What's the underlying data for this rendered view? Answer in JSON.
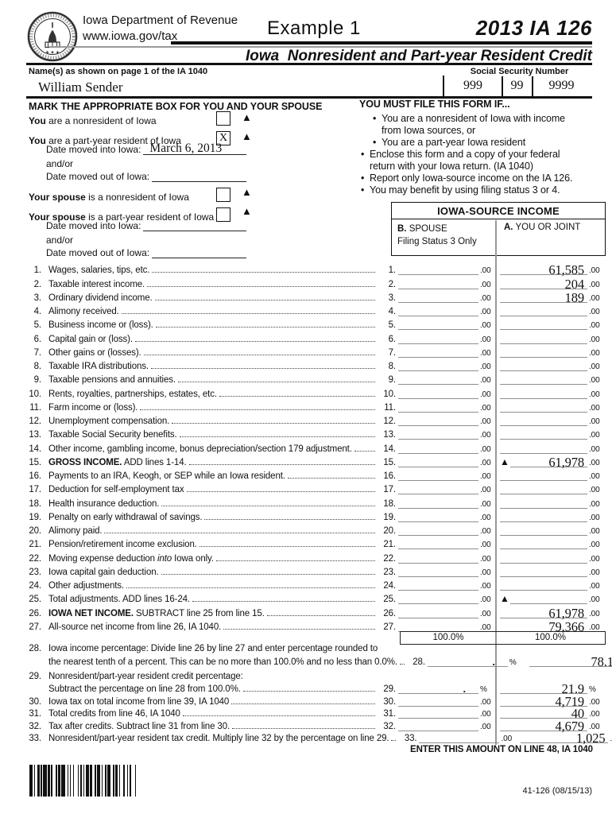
{
  "colors": {
    "text": "#111111",
    "fill_line": "#8f8f8f",
    "divider": "#999999"
  },
  "header": {
    "dept": "Iowa Department of Revenue",
    "url": "www.iowa.gov/tax",
    "example": "Example 1",
    "form_id": "2013 IA 126",
    "subtitle": "Iowa  Nonresident and Part-year Resident Credit",
    "seal": "iowa-department-of-revenue-seal"
  },
  "identity": {
    "name_label": "Name(s) as shown on page 1 of the IA 1040",
    "ssn_label": "Social Security Number",
    "name_value": "William Sender",
    "ssn_parts": {
      "0": "999",
      "1": "99",
      "2": "9999"
    }
  },
  "residency": {
    "title": "MARK THE APPROPRIATE BOX FOR YOU AND YOUR SPOUSE",
    "items": {
      "0": {
        "bold": "You",
        "rest": " are a nonresident of Iowa",
        "mark": ""
      },
      "1": {
        "bold": "You",
        "rest": " are a part-year resident of Iowa",
        "mark": "X"
      },
      "2": {
        "bold": "Your spouse",
        "rest": " is a nonresident of Iowa",
        "mark": ""
      },
      "3": {
        "bold": "Your spouse",
        "rest": " is a part-year resident of Iowa",
        "mark": ""
      }
    },
    "date_in_label": "Date moved into Iowa:",
    "andor": "and/or",
    "date_out_label": "Date moved out of Iowa:",
    "you_date_in": "March 6, 2013",
    "you_date_out": "",
    "spouse_date_in": "",
    "spouse_date_out": ""
  },
  "must_file": {
    "title": "YOU MUST FILE THIS FORM IF...",
    "bullets": {
      "0": {
        "lvl": 2,
        "text": "You are a nonresident of Iowa with income\nfrom Iowa sources, or"
      },
      "1": {
        "lvl": 2,
        "text": "You are a part-year Iowa resident"
      },
      "2": {
        "lvl": 1,
        "text": "Enclose this form and a copy of your federal\nreturn with your Iowa return. (IA 1040)"
      },
      "3": {
        "lvl": 1,
        "text": "Report only Iowa-source income on the IA 126."
      },
      "4": {
        "lvl": 1,
        "text": "You may benefit by using filing status 3 or 4."
      }
    }
  },
  "income_box": {
    "title": "IOWA-SOURCE INCOME",
    "col_b_letter": "B.",
    "col_b_text": " SPOUSE",
    "col_b_sub": "Filing Status 3 Only",
    "col_a_letter": "A.",
    "col_a_text": " YOU OR JOINT"
  },
  "lines": [
    {
      "n": "1.",
      "segs": [
        {
          "t": "Wages, salaries, tips, etc. "
        }
      ],
      "b": "",
      "a": "61,585",
      "unit": ".00"
    },
    {
      "n": "2.",
      "segs": [
        {
          "t": "Taxable interest income. "
        }
      ],
      "b": "",
      "a": "204",
      "unit": ".00"
    },
    {
      "n": "3.",
      "segs": [
        {
          "t": "Ordinary dividend income. "
        }
      ],
      "b": "",
      "a": "189",
      "unit": ".00"
    },
    {
      "n": "4.",
      "segs": [
        {
          "t": "Alimony received. "
        }
      ],
      "b": "",
      "a": "",
      "unit": ".00"
    },
    {
      "n": "5.",
      "segs": [
        {
          "t": "Business income or (loss). "
        }
      ],
      "b": "",
      "a": "",
      "unit": ".00"
    },
    {
      "n": "6.",
      "segs": [
        {
          "t": "Capital gain or (loss). "
        }
      ],
      "b": "",
      "a": "",
      "unit": ".00"
    },
    {
      "n": "7.",
      "segs": [
        {
          "t": "Other gains or (losses). "
        }
      ],
      "b": "",
      "a": "",
      "unit": ".00"
    },
    {
      "n": "8.",
      "segs": [
        {
          "t": "Taxable IRA distributions. "
        }
      ],
      "b": "",
      "a": "",
      "unit": ".00"
    },
    {
      "n": "9.",
      "segs": [
        {
          "t": "Taxable pensions and annuities. "
        }
      ],
      "b": "",
      "a": "",
      "unit": ".00"
    },
    {
      "n": "10.",
      "segs": [
        {
          "t": "Rents, royalties, partnerships, estates, etc. "
        }
      ],
      "b": "",
      "a": "",
      "unit": ".00"
    },
    {
      "n": "11.",
      "segs": [
        {
          "t": "Farm income or (loss). "
        }
      ],
      "b": "",
      "a": "",
      "unit": ".00"
    },
    {
      "n": "12.",
      "segs": [
        {
          "t": "Unemployment compensation. "
        }
      ],
      "b": "",
      "a": "",
      "unit": ".00"
    },
    {
      "n": "13.",
      "segs": [
        {
          "t": "Taxable Social Security benefits. "
        }
      ],
      "b": "",
      "a": "",
      "unit": ".00"
    },
    {
      "n": "14.",
      "segs": [
        {
          "t": "Other income, gambling income, bonus depreciation/section 179 adjustment. "
        }
      ],
      "b": "",
      "a": "",
      "unit": ".00"
    },
    {
      "n": "15.",
      "segs": [
        {
          "t": "GROSS INCOME.",
          "bold": true
        },
        {
          "t": " ADD lines 1-14. "
        }
      ],
      "b": "",
      "a": "61,978",
      "unit": ".00",
      "tri": true
    },
    {
      "n": "16.",
      "segs": [
        {
          "t": "Payments to an IRA, Keogh, or SEP while an Iowa resident. "
        }
      ],
      "b": "",
      "a": "",
      "unit": ".00"
    },
    {
      "n": "17.",
      "segs": [
        {
          "t": "Deduction for self-employment tax "
        }
      ],
      "b": "",
      "a": "",
      "unit": ".00"
    },
    {
      "n": "18.",
      "segs": [
        {
          "t": "Health insurance deduction. "
        }
      ],
      "b": "",
      "a": "",
      "unit": ".00"
    },
    {
      "n": "19.",
      "segs": [
        {
          "t": "Penalty on early withdrawal of savings. "
        }
      ],
      "b": "",
      "a": "",
      "unit": ".00"
    },
    {
      "n": "20.",
      "segs": [
        {
          "t": "Alimony paid. "
        }
      ],
      "b": "",
      "a": "",
      "unit": ".00"
    },
    {
      "n": "21.",
      "segs": [
        {
          "t": "Pension/retirement income exclusion. "
        }
      ],
      "b": "",
      "a": "",
      "unit": ".00"
    },
    {
      "n": "22.",
      "segs": [
        {
          "t": "Moving expense deduction "
        },
        {
          "t": "into",
          "ital": true
        },
        {
          "t": " Iowa only. "
        }
      ],
      "b": "",
      "a": "",
      "unit": ".00"
    },
    {
      "n": "23.",
      "segs": [
        {
          "t": "Iowa capital gain deduction. "
        }
      ],
      "b": "",
      "a": "",
      "unit": ".00"
    },
    {
      "n": "24.",
      "segs": [
        {
          "t": "Other adjustments. "
        }
      ],
      "b": "",
      "a": "",
      "unit": ".00"
    },
    {
      "n": "25.",
      "segs": [
        {
          "t": "Total adjustments. ADD lines 16-24. "
        }
      ],
      "b": "",
      "a": "",
      "unit": ".00",
      "tri": true
    },
    {
      "n": "26.",
      "segs": [
        {
          "t": "IOWA NET INCOME.",
          "bold": true
        },
        {
          "t": " SUBTRACT line 25 from line 15. "
        }
      ],
      "b": "",
      "a": "61,978",
      "unit": ".00"
    },
    {
      "n": "27.",
      "segs": [
        {
          "t": "All-source net income from line 26, IA 1040. "
        }
      ],
      "b": "",
      "a": "79,366",
      "unit": ".00"
    }
  ],
  "percent_row": {
    "b": "100.0%",
    "a": "100.0%"
  },
  "lines2": [
    {
      "n": "28.",
      "line1": "Iowa income percentage: Divide line 26 by line 27 and enter percentage rounded to",
      "segs": [
        {
          "t": "the nearest tenth of a percent. This can be no more than 100.0% and no less than 0.0%. "
        }
      ],
      "b": "",
      "a": "78.1",
      "unit": "%",
      "bdot": true
    },
    {
      "n": "29.",
      "line1": "Nonresident/part-year resident credit percentage:",
      "segs": [
        {
          "t": "Subtract the percentage on line 28 from 100.0%. "
        }
      ],
      "b": "",
      "a": "21.9",
      "unit": "%",
      "bdot": true
    },
    {
      "n": "30.",
      "segs": [
        {
          "t": "Iowa tax on total income from line 39, IA 1040 "
        }
      ],
      "b": "",
      "a": "4,719",
      "unit": ".00"
    },
    {
      "n": "31.",
      "segs": [
        {
          "t": "Total credits from line 46, IA 1040 "
        }
      ],
      "b": "",
      "a": "40",
      "unit": ".00"
    },
    {
      "n": "32.",
      "segs": [
        {
          "t": "Tax after credits. Subtract line 31 from line 30. "
        }
      ],
      "b": "",
      "a": "4,679",
      "unit": ".00"
    },
    {
      "n": "33.",
      "segs": [
        {
          "t": "Nonresident/part-year resident tax credit. Multiply line 32 by the percentage on line 29. "
        }
      ],
      "b": "",
      "a": "1,025",
      "unit": ".00"
    }
  ],
  "footer": {
    "enter_note": "ENTER THIS AMOUNT ON LINE 48, IA 1040",
    "form_code": "41-126 (08/15/13)"
  }
}
